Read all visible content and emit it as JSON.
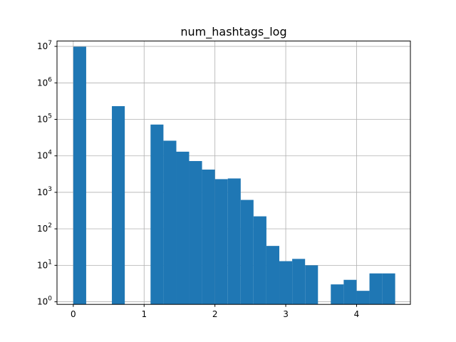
{
  "chart_data": {
    "type": "bar",
    "title": "num_hashtags_log",
    "xlabel": "",
    "ylabel": "",
    "yscale": "log",
    "xlim": [
      -0.23,
      4.76
    ],
    "ylim": [
      0.85,
      14000000
    ],
    "grid": true,
    "color": "#1f77b4",
    "x_ticks": [
      0,
      1,
      2,
      3,
      4
    ],
    "y_ticks": [
      {
        "value": 1,
        "base": "10",
        "exp": "0"
      },
      {
        "value": 10,
        "base": "10",
        "exp": "1"
      },
      {
        "value": 100,
        "base": "10",
        "exp": "2"
      },
      {
        "value": 1000,
        "base": "10",
        "exp": "3"
      },
      {
        "value": 10000,
        "base": "10",
        "exp": "4"
      },
      {
        "value": 100000,
        "base": "10",
        "exp": "5"
      },
      {
        "value": 1000000,
        "base": "10",
        "exp": "6"
      },
      {
        "value": 10000000,
        "base": "10",
        "exp": "7"
      }
    ],
    "bins": [
      {
        "x0": 0.0,
        "x1": 0.182,
        "count": 9800000
      },
      {
        "x0": 0.182,
        "x1": 0.364,
        "count": 0
      },
      {
        "x0": 0.364,
        "x1": 0.545,
        "count": 0
      },
      {
        "x0": 0.545,
        "x1": 0.727,
        "count": 230000
      },
      {
        "x0": 0.727,
        "x1": 0.909,
        "count": 0
      },
      {
        "x0": 0.909,
        "x1": 1.091,
        "count": 0
      },
      {
        "x0": 1.091,
        "x1": 1.273,
        "count": 72000
      },
      {
        "x0": 1.273,
        "x1": 1.455,
        "count": 26000
      },
      {
        "x0": 1.455,
        "x1": 1.636,
        "count": 13000
      },
      {
        "x0": 1.636,
        "x1": 1.818,
        "count": 7200
      },
      {
        "x0": 1.818,
        "x1": 2.0,
        "count": 4200
      },
      {
        "x0": 2.0,
        "x1": 2.182,
        "count": 2300
      },
      {
        "x0": 2.182,
        "x1": 2.364,
        "count": 2400
      },
      {
        "x0": 2.364,
        "x1": 2.545,
        "count": 620
      },
      {
        "x0": 2.545,
        "x1": 2.727,
        "count": 220
      },
      {
        "x0": 2.727,
        "x1": 2.909,
        "count": 34
      },
      {
        "x0": 2.909,
        "x1": 3.091,
        "count": 13
      },
      {
        "x0": 3.091,
        "x1": 3.273,
        "count": 15
      },
      {
        "x0": 3.273,
        "x1": 3.455,
        "count": 10
      },
      {
        "x0": 3.455,
        "x1": 3.636,
        "count": 0
      },
      {
        "x0": 3.636,
        "x1": 3.818,
        "count": 3
      },
      {
        "x0": 3.818,
        "x1": 4.0,
        "count": 4
      },
      {
        "x0": 4.0,
        "x1": 4.182,
        "count": 2
      },
      {
        "x0": 4.182,
        "x1": 4.364,
        "count": 6
      },
      {
        "x0": 4.364,
        "x1": 4.545,
        "count": 6
      }
    ]
  }
}
